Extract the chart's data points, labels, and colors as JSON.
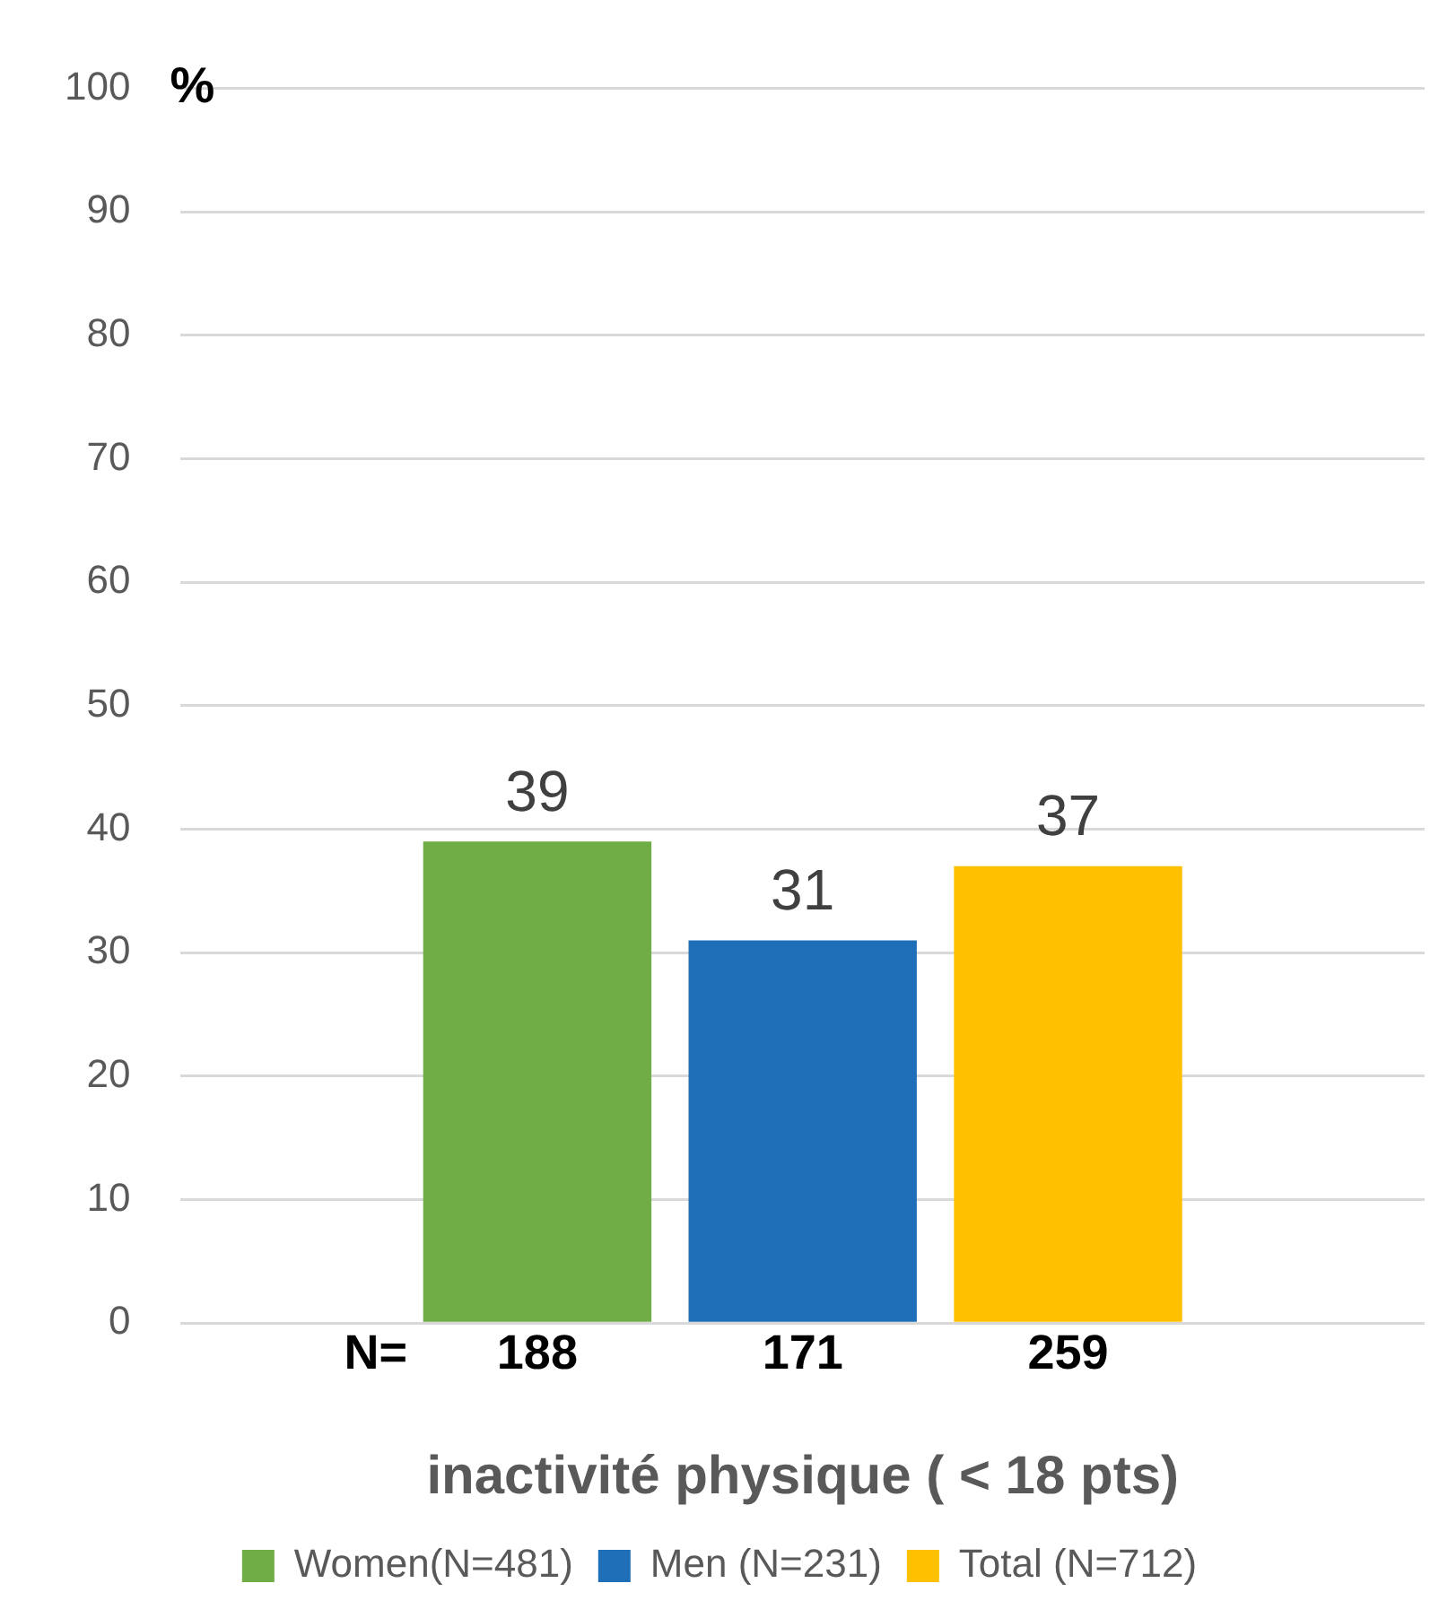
{
  "chart_data": {
    "type": "bar",
    "ylabel": "%",
    "xlabel": "inactivité physique ( < 18 pts)",
    "categories": [
      null
    ],
    "series": [
      {
        "name": "Women(N=481)",
        "color": "#70ad47",
        "values": [
          39
        ]
      },
      {
        "name": "Men (N=231)",
        "color": "#1f6fb8",
        "values": [
          31
        ]
      },
      {
        "name": "Total (N=712)",
        "color": "#ffc000",
        "values": [
          37
        ]
      }
    ],
    "ylim": [
      0,
      100
    ],
    "yticks": [
      0,
      10,
      20,
      30,
      40,
      50,
      60,
      70,
      80,
      90,
      100
    ],
    "grid": "y",
    "legend": "bottom",
    "data_labels": true,
    "annotations": [
      "N=",
      "188",
      "171",
      "259"
    ]
  }
}
